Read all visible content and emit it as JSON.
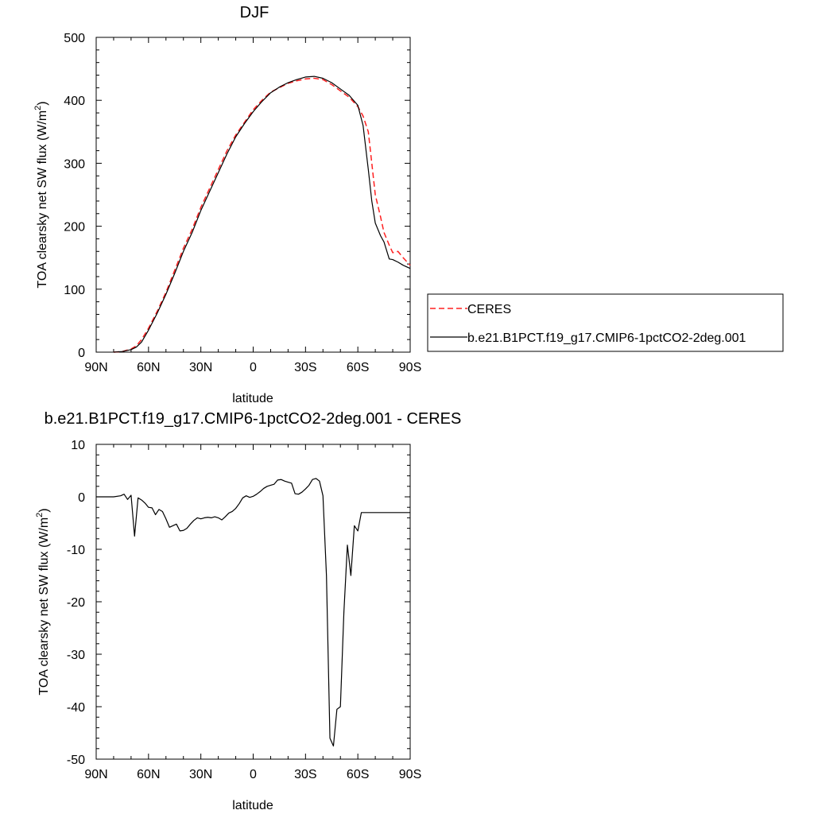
{
  "chart_data": [
    {
      "type": "line",
      "title": "DJF",
      "xlabel": "latitude",
      "ylabel_main": "TOA clearsky net SW flux (W/m",
      "ylabel_sup": "2",
      "ylabel_end": ")",
      "xticks": [
        {
          "value": -90,
          "label": "90N"
        },
        {
          "value": -60,
          "label": "60N"
        },
        {
          "value": -30,
          "label": "30N"
        },
        {
          "value": 0,
          "label": "0"
        },
        {
          "value": 30,
          "label": "30S"
        },
        {
          "value": 60,
          "label": "60S"
        },
        {
          "value": 90,
          "label": "90S"
        }
      ],
      "yticks": [
        0,
        100,
        200,
        300,
        400,
        500
      ],
      "xlim": [
        -90,
        90
      ],
      "ylim": [
        0,
        500
      ],
      "legend_placement": "right",
      "series": [
        {
          "name": "CERES",
          "color": "#ff2020",
          "dash": "dashed",
          "x": [
            -80,
            -75,
            -70,
            -67,
            -64,
            -60,
            -55,
            -50,
            -45,
            -40,
            -35,
            -30,
            -25,
            -20,
            -15,
            -10,
            -5,
            0,
            5,
            10,
            15,
            20,
            25,
            30,
            35,
            40,
            45,
            50,
            55,
            60,
            63,
            66,
            68,
            70,
            73,
            75,
            78,
            80,
            83,
            86,
            90
          ],
          "y": [
            0,
            1,
            5,
            10,
            20,
            38,
            65,
            95,
            130,
            165,
            195,
            230,
            260,
            290,
            320,
            345,
            365,
            385,
            400,
            413,
            420,
            427,
            431,
            434,
            435,
            433,
            425,
            415,
            405,
            390,
            375,
            350,
            300,
            250,
            215,
            190,
            170,
            158,
            160,
            150,
            138
          ]
        },
        {
          "name": "b.e21.B1PCT.f19_g17.CMIP6-1pctCO2-2deg.001",
          "color": "#000000",
          "dash": "solid",
          "x": [
            -80,
            -75,
            -70,
            -67,
            -64,
            -60,
            -55,
            -50,
            -45,
            -40,
            -35,
            -30,
            -25,
            -20,
            -15,
            -10,
            -5,
            0,
            5,
            10,
            15,
            20,
            25,
            30,
            35,
            40,
            45,
            50,
            55,
            60,
            63,
            66,
            68,
            70,
            73,
            75,
            78,
            80,
            83,
            86,
            90
          ],
          "y": [
            0,
            1,
            4,
            8,
            16,
            35,
            62,
            92,
            125,
            160,
            190,
            225,
            255,
            285,
            315,
            342,
            363,
            382,
            398,
            412,
            421,
            428,
            433,
            437,
            438,
            435,
            428,
            418,
            408,
            392,
            360,
            290,
            240,
            205,
            185,
            175,
            148,
            147,
            143,
            138,
            133
          ]
        }
      ]
    },
    {
      "type": "line",
      "title": "b.e21.B1PCT.f19_g17.CMIP6-1pctCO2-2deg.001 - CERES",
      "xlabel": "latitude",
      "ylabel_main": "TOA clearsky net SW flux (W/m",
      "ylabel_sup": "2",
      "ylabel_end": ")",
      "xticks": [
        {
          "value": -90,
          "label": "90N"
        },
        {
          "value": -60,
          "label": "60N"
        },
        {
          "value": -30,
          "label": "30N"
        },
        {
          "value": 0,
          "label": "0"
        },
        {
          "value": 30,
          "label": "30S"
        },
        {
          "value": 60,
          "label": "60S"
        },
        {
          "value": 90,
          "label": "90S"
        }
      ],
      "yticks": [
        -50,
        -40,
        -30,
        -20,
        -10,
        0,
        10
      ],
      "xlim": [
        -90,
        90
      ],
      "ylim": [
        -50,
        10
      ],
      "series": [
        {
          "color": "#000000",
          "dash": "solid",
          "x": [
            -90,
            -85,
            -80,
            -76,
            -74,
            -72,
            -70,
            -68,
            -66,
            -64,
            -62,
            -60,
            -58,
            -56,
            -54,
            -52,
            -50,
            -48,
            -46,
            -44,
            -42,
            -40,
            -38,
            -36,
            -34,
            -32,
            -30,
            -28,
            -26,
            -24,
            -22,
            -20,
            -18,
            -16,
            -14,
            -12,
            -10,
            -8,
            -6,
            -4,
            -2,
            0,
            2,
            4,
            6,
            8,
            10,
            12,
            14,
            16,
            18,
            20,
            22,
            24,
            26,
            28,
            30,
            32,
            34,
            36,
            38,
            40,
            42,
            44,
            46,
            48,
            50,
            52,
            54,
            56,
            58,
            60,
            62,
            64,
            66,
            68,
            70,
            72,
            74,
            76,
            78,
            80,
            82,
            84,
            86,
            88,
            90
          ],
          "y": [
            0,
            0,
            0,
            0.2,
            0.5,
            -0.5,
            0.3,
            -7.5,
            -0.2,
            -0.6,
            -1.2,
            -2.0,
            -2.1,
            -3.4,
            -2.4,
            -2.8,
            -4.2,
            -5.8,
            -5.5,
            -5.2,
            -6.5,
            -6.4,
            -6.0,
            -5.2,
            -4.5,
            -4.0,
            -4.2,
            -4.0,
            -3.9,
            -4.0,
            -3.8,
            -4.0,
            -4.4,
            -3.8,
            -3.1,
            -2.8,
            -2.2,
            -1.3,
            -0.2,
            0.2,
            -0.1,
            0.1,
            0.5,
            1.0,
            1.6,
            2.0,
            2.2,
            2.4,
            3.2,
            3.3,
            3.0,
            2.8,
            2.6,
            0.6,
            0.5,
            0.9,
            1.5,
            2.2,
            3.3,
            3.5,
            3.0,
            0.2,
            -15.0,
            -46.0,
            -47.5,
            -40.5,
            -40.0,
            -22.0,
            -9.2,
            -15.0,
            -5.5,
            -6.5,
            -3.0,
            -3.0,
            -3.0,
            -3.0,
            -3.0,
            -3.0,
            -3.0,
            -3.0,
            -3.0,
            -3.0,
            -3.0,
            -3.0,
            -3.0,
            -3.0,
            -3.0
          ]
        }
      ]
    }
  ]
}
